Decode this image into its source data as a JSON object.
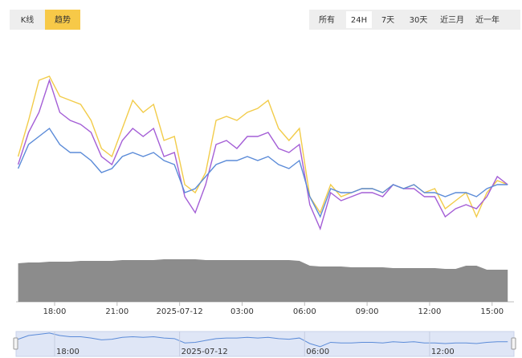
{
  "ui": {
    "view_tabs": [
      "K线",
      "趋势"
    ],
    "active_view": 1,
    "range_tabs": [
      "所有",
      "24H",
      "7天",
      "30天",
      "近三月",
      "近一年"
    ],
    "active_range": 1
  },
  "chart_data": [
    {
      "type": "line",
      "x": [
        16.25,
        16.75,
        17.25,
        17.75,
        18.25,
        18.75,
        19.25,
        19.75,
        20.25,
        20.75,
        21.25,
        21.75,
        22.25,
        22.75,
        23.25,
        23.75,
        24.25,
        24.75,
        25.25,
        25.75,
        26.25,
        26.75,
        27.25,
        27.75,
        28.25,
        28.75,
        29.25,
        29.75,
        30.25,
        30.75,
        31.25,
        31.75,
        32.25,
        32.75,
        33.25,
        33.75,
        34.25,
        34.75,
        35.25,
        35.75,
        36.25,
        36.75,
        37.25,
        37.75,
        38.25,
        38.75,
        39.25,
        39.75
      ],
      "xlim": [
        16.15,
        40.05
      ],
      "xticks": [
        {
          "value": 18,
          "label": "18:00"
        },
        {
          "value": 21,
          "label": "21:00"
        },
        {
          "value": 24,
          "label": "2025-07-12"
        },
        {
          "value": 27,
          "label": "03:00"
        },
        {
          "value": 30,
          "label": "06:00"
        },
        {
          "value": 33,
          "label": "09:00"
        },
        {
          "value": 36,
          "label": "12:00"
        },
        {
          "value": 39,
          "label": "15:00"
        }
      ],
      "ylim": [
        90,
        350
      ],
      "series": [
        {
          "color": "#f2cc4a",
          "values": [
            205,
            250,
            300,
            305,
            280,
            275,
            270,
            250,
            215,
            205,
            240,
            275,
            260,
            270,
            225,
            230,
            170,
            160,
            185,
            250,
            255,
            250,
            260,
            265,
            275,
            240,
            225,
            240,
            155,
            135,
            170,
            155,
            160,
            165,
            165,
            160,
            170,
            165,
            170,
            160,
            165,
            140,
            150,
            160,
            130,
            160,
            175,
            170
          ]
        },
        {
          "color": "#a45ed6",
          "values": [
            195,
            235,
            260,
            300,
            260,
            250,
            245,
            235,
            205,
            195,
            225,
            240,
            230,
            240,
            205,
            210,
            155,
            135,
            170,
            220,
            225,
            215,
            230,
            230,
            235,
            215,
            210,
            220,
            145,
            115,
            160,
            150,
            155,
            160,
            160,
            155,
            170,
            165,
            165,
            155,
            155,
            130,
            140,
            145,
            140,
            155,
            180,
            170
          ]
        },
        {
          "color": "#5b8bd8",
          "values": [
            190,
            220,
            230,
            240,
            220,
            210,
            210,
            200,
            185,
            190,
            205,
            210,
            205,
            210,
            200,
            195,
            160,
            165,
            180,
            195,
            200,
            200,
            205,
            200,
            205,
            195,
            190,
            200,
            155,
            130,
            165,
            160,
            160,
            165,
            165,
            160,
            170,
            165,
            170,
            160,
            160,
            155,
            160,
            160,
            155,
            165,
            170,
            170
          ]
        }
      ]
    },
    {
      "type": "area",
      "color": "#8c8c8c",
      "ylim": [
        0,
        60
      ],
      "values": [
        48,
        49,
        49,
        50,
        50,
        50,
        51,
        51,
        51,
        51,
        52,
        52,
        52,
        52,
        53,
        53,
        53,
        53,
        52,
        52,
        52,
        52,
        52,
        52,
        52,
        52,
        52,
        51,
        45,
        44,
        44,
        44,
        43,
        43,
        43,
        43,
        42,
        42,
        42,
        42,
        42,
        41,
        41,
        45,
        45,
        40,
        40,
        40
      ]
    }
  ]
}
